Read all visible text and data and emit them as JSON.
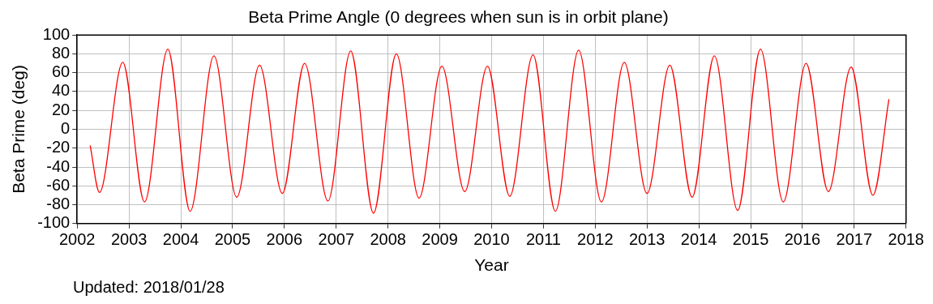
{
  "chart_data": {
    "type": "line",
    "title": "Beta Prime Angle (0 degrees when sun is in orbit plane)",
    "xlabel": "Year",
    "ylabel": "Beta Prime (deg)",
    "annotations": [
      "Updated: 2018/01/28"
    ],
    "x": [
      2002.25,
      2002.43,
      2002.88,
      2003.3,
      2003.75,
      2004.18,
      2004.64,
      2005.08,
      2005.52,
      2005.96,
      2006.39,
      2006.84,
      2007.28,
      2007.72,
      2008.16,
      2008.6,
      2009.04,
      2009.48,
      2009.92,
      2010.35,
      2010.8,
      2011.23,
      2011.68,
      2012.12,
      2012.56,
      2013.0,
      2013.44,
      2013.87,
      2014.3,
      2014.75,
      2015.19,
      2015.63,
      2016.07,
      2016.5,
      2016.94,
      2017.36,
      2017.67
    ],
    "series": [
      {
        "color": "#ff0000",
        "values": [
          -17,
          -67,
          71,
          -77,
          85,
          -87,
          78,
          -72,
          68,
          -68,
          70,
          -76,
          83,
          -89,
          80,
          -73,
          67,
          -66,
          67,
          -71,
          79,
          -87,
          84,
          -77,
          71,
          -68,
          68,
          -72,
          78,
          -86,
          85,
          -77,
          70,
          -66,
          66,
          -70,
          32
        ]
      }
    ],
    "xlim": [
      2002,
      2018
    ],
    "xticks": [
      2002,
      2003,
      2004,
      2005,
      2006,
      2007,
      2008,
      2009,
      2010,
      2011,
      2012,
      2013,
      2014,
      2015,
      2016,
      2017,
      2018
    ],
    "ylim": [
      -100,
      100
    ],
    "yticks": [
      -100,
      -80,
      -60,
      -40,
      -20,
      0,
      20,
      40,
      60,
      80,
      100
    ],
    "grid": true,
    "legend": false,
    "marker": "none",
    "line_style": "solid"
  }
}
